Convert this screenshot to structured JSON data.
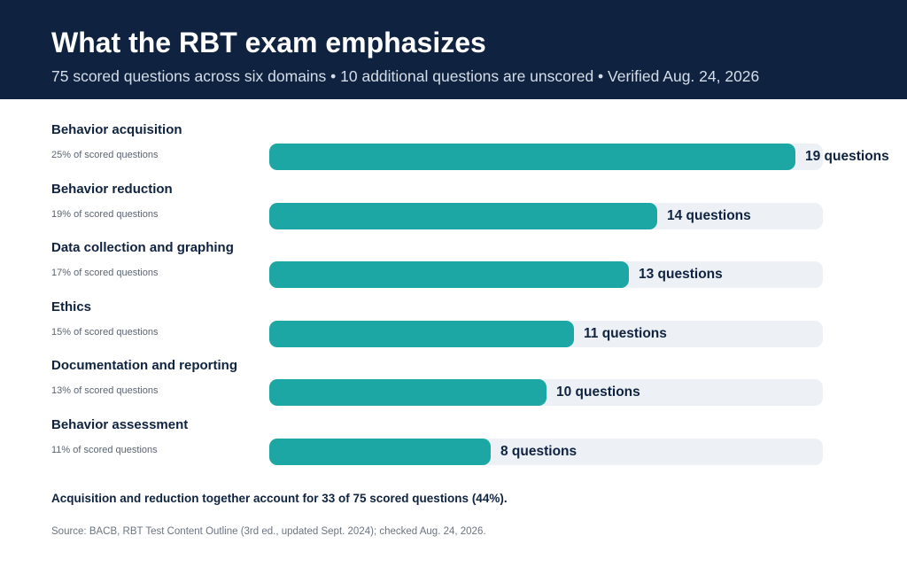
{
  "header": {
    "title": "What the RBT exam emphasizes",
    "subtitle": "75 scored questions across six domains • 10 additional questions are unscored • Verified Aug. 24, 2026"
  },
  "chart_data": {
    "type": "bar",
    "orientation": "horizontal",
    "categories": [
      "Behavior acquisition",
      "Behavior reduction",
      "Data collection and graphing",
      "Ethics",
      "Documentation and reporting",
      "Behavior assessment"
    ],
    "values": [
      19,
      14,
      13,
      11,
      10,
      8
    ],
    "value_labels": [
      "19 questions",
      "14 questions",
      "13 questions",
      "11 questions",
      "10 questions",
      "8 questions"
    ],
    "percent_labels": [
      "25% of scored questions",
      "19% of scored questions",
      "17% of scored questions",
      "15% of scored questions",
      "13% of scored questions",
      "11% of scored questions"
    ],
    "xlim": [
      0,
      20
    ],
    "grid": false,
    "colors": {
      "bar": "#1ca7a4",
      "track": "#edf1f5",
      "header": "#0f2340"
    }
  },
  "footer": {
    "note": "Acquisition and reduction together account for 33 of 75 scored questions (44%).",
    "source": "Source: BACB, RBT Test Content Outline (3rd ed., updated Sept. 2024); checked Aug. 24, 2026."
  }
}
